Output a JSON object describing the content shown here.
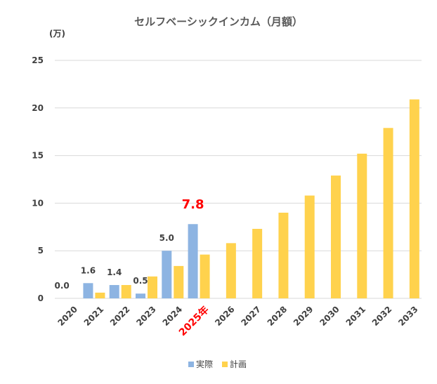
{
  "chart_data": {
    "type": "bar",
    "title": "セルフベーシックインカム（月額）",
    "unit_label": "(万)",
    "ylim": [
      0,
      25
    ],
    "yticks": [
      0,
      5,
      10,
      15,
      20,
      25
    ],
    "grid": true,
    "legend_position": "bottom",
    "categories": [
      "2020",
      "2021",
      "2022",
      "2023",
      "2024",
      "2025年",
      "2026",
      "2027",
      "2028",
      "2029",
      "2030",
      "2031",
      "2032",
      "2033"
    ],
    "highlight_category": "2025年",
    "series": [
      {
        "name": "実際",
        "color": "#8db4e2",
        "values": [
          0.0,
          1.6,
          1.4,
          0.5,
          5.0,
          7.8,
          null,
          null,
          null,
          null,
          null,
          null,
          null,
          null
        ],
        "labels": [
          "0.0",
          "1.6",
          "1.4",
          "0.5",
          "5.0",
          "7.8",
          null,
          null,
          null,
          null,
          null,
          null,
          null,
          null
        ]
      },
      {
        "name": "計画",
        "color": "#ffd24d",
        "values": [
          null,
          0.6,
          1.4,
          2.3,
          3.4,
          4.6,
          5.8,
          7.3,
          9.0,
          10.8,
          12.9,
          15.2,
          17.9,
          20.9
        ]
      }
    ]
  }
}
